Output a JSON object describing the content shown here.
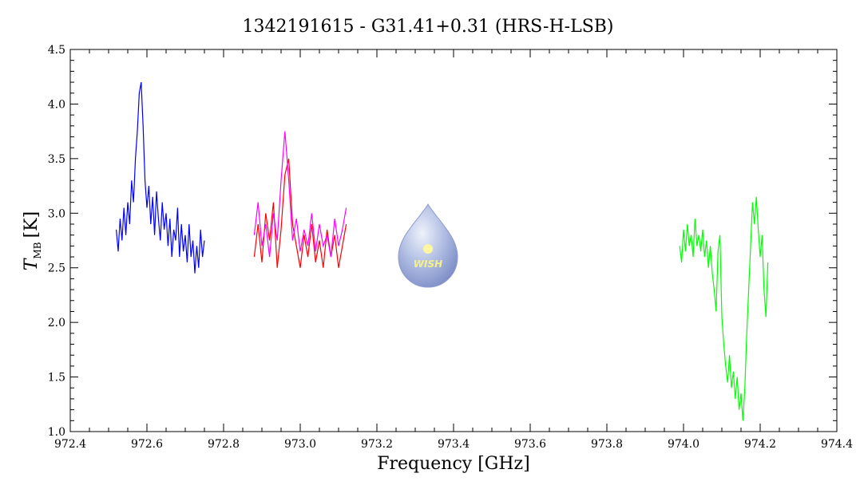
{
  "chart_data": {
    "type": "line",
    "title": "1342191615 - G31.41+0.31 (HRS-H-LSB)",
    "x_label": "Frequency [GHz]",
    "y_label": {
      "symbol": "T",
      "subscript": "MB",
      "unit": "[K]"
    },
    "logo_text": "WISH",
    "xlim": [
      972.4,
      974.4
    ],
    "xticks": [
      972.4,
      972.6,
      972.8,
      {
        "value": 973,
        "label": "973.0"
      },
      973.2,
      973.4,
      973.6,
      973.8,
      {
        "value": 974,
        "label": "974.0"
      },
      974.2,
      974.4
    ],
    "ylim": [
      1,
      4.5
    ],
    "yticks": [
      {
        "value": 1,
        "label": "1.0"
      },
      1.5,
      {
        "value": 2,
        "label": "2.0"
      },
      2.5,
      {
        "value": 3,
        "label": "3.0"
      },
      3.5,
      {
        "value": 4,
        "label": "4.0"
      },
      4.5
    ],
    "series": [
      {
        "color": "#0000ff",
        "x": [
          972.52,
          972.525,
          972.53,
          972.535,
          972.54,
          972.545,
          972.55,
          972.555,
          972.56,
          972.565,
          972.57,
          972.575,
          972.58,
          972.585,
          972.59,
          972.595,
          972.6,
          972.605,
          972.61,
          972.615,
          972.62,
          972.625,
          972.63,
          972.635,
          972.64,
          972.645,
          972.65,
          972.655,
          972.66,
          972.665,
          972.67,
          972.675,
          972.68,
          972.685,
          972.69,
          972.695,
          972.7,
          972.705,
          972.71,
          972.715,
          972.72,
          972.725,
          972.73,
          972.735,
          972.74,
          972.745,
          972.75
        ],
        "values": [
          2.85,
          2.65,
          2.95,
          2.75,
          3.05,
          2.8,
          3.1,
          2.9,
          3.3,
          3.1,
          3.5,
          3.75,
          4.1,
          4.2,
          3.8,
          3.3,
          3.05,
          3.25,
          2.9,
          3.15,
          2.8,
          3.2,
          2.95,
          2.75,
          3.1,
          2.85,
          3.0,
          2.7,
          2.95,
          2.6,
          2.85,
          2.75,
          3.05,
          2.6,
          2.9,
          2.65,
          2.8,
          2.55,
          2.9,
          2.6,
          2.75,
          2.45,
          2.7,
          2.5,
          2.85,
          2.6,
          2.75
        ]
      },
      {
        "color": "#ff0000",
        "x": [
          972.88,
          972.89,
          972.9,
          972.91,
          972.92,
          972.93,
          972.94,
          972.95,
          972.96,
          972.97,
          972.98,
          972.99,
          973,
          973.01,
          973.02,
          973.03,
          973.04,
          973.05,
          973.06,
          973.07,
          973.08,
          973.09,
          973.1,
          973.11,
          973.12
        ],
        "values": [
          2.6,
          2.9,
          2.55,
          3.0,
          2.75,
          3.1,
          2.5,
          2.85,
          3.35,
          3.5,
          2.9,
          2.7,
          2.5,
          2.8,
          2.6,
          2.9,
          2.55,
          2.75,
          2.5,
          2.85,
          2.6,
          2.8,
          2.5,
          2.7,
          2.9
        ]
      },
      {
        "color": "#ff00ff",
        "x": [
          972.88,
          972.89,
          972.9,
          972.91,
          972.92,
          972.93,
          972.94,
          972.95,
          972.96,
          972.97,
          972.98,
          972.99,
          973,
          973.01,
          973.02,
          973.03,
          973.04,
          973.05,
          973.06,
          973.07,
          973.08,
          973.09,
          973.1,
          973.11,
          973.12
        ],
        "values": [
          2.8,
          3.1,
          2.7,
          2.9,
          2.6,
          3.0,
          2.75,
          3.3,
          3.75,
          3.3,
          2.75,
          2.95,
          2.65,
          2.85,
          2.7,
          3.0,
          2.65,
          2.9,
          2.7,
          2.8,
          2.6,
          2.95,
          2.7,
          2.85,
          3.05
        ]
      },
      {
        "color": "#00ff00",
        "x": [
          973.99,
          973.995,
          974,
          974.005,
          974.01,
          974.015,
          974.02,
          974.025,
          974.03,
          974.035,
          974.04,
          974.045,
          974.05,
          974.055,
          974.06,
          974.065,
          974.07,
          974.075,
          974.08,
          974.085,
          974.09,
          974.095,
          974.1,
          974.105,
          974.11,
          974.115,
          974.12,
          974.125,
          974.13,
          974.135,
          974.14,
          974.145,
          974.15,
          974.155,
          974.16,
          974.165,
          974.17,
          974.175,
          974.18,
          974.185,
          974.19,
          974.195,
          974.2,
          974.205,
          974.21,
          974.215,
          974.22
        ],
        "values": [
          2.7,
          2.55,
          2.85,
          2.65,
          2.9,
          2.7,
          2.8,
          2.6,
          2.95,
          2.7,
          2.8,
          2.65,
          2.85,
          2.6,
          2.75,
          2.5,
          2.7,
          2.45,
          2.3,
          2.1,
          2.65,
          2.8,
          2.05,
          1.8,
          1.6,
          1.45,
          1.7,
          1.4,
          1.55,
          1.3,
          1.5,
          1.2,
          1.35,
          1.1,
          1.4,
          1.9,
          2.3,
          2.7,
          3.1,
          2.9,
          3.15,
          2.85,
          2.6,
          2.8,
          2.3,
          2.05,
          2.55
        ]
      }
    ]
  }
}
